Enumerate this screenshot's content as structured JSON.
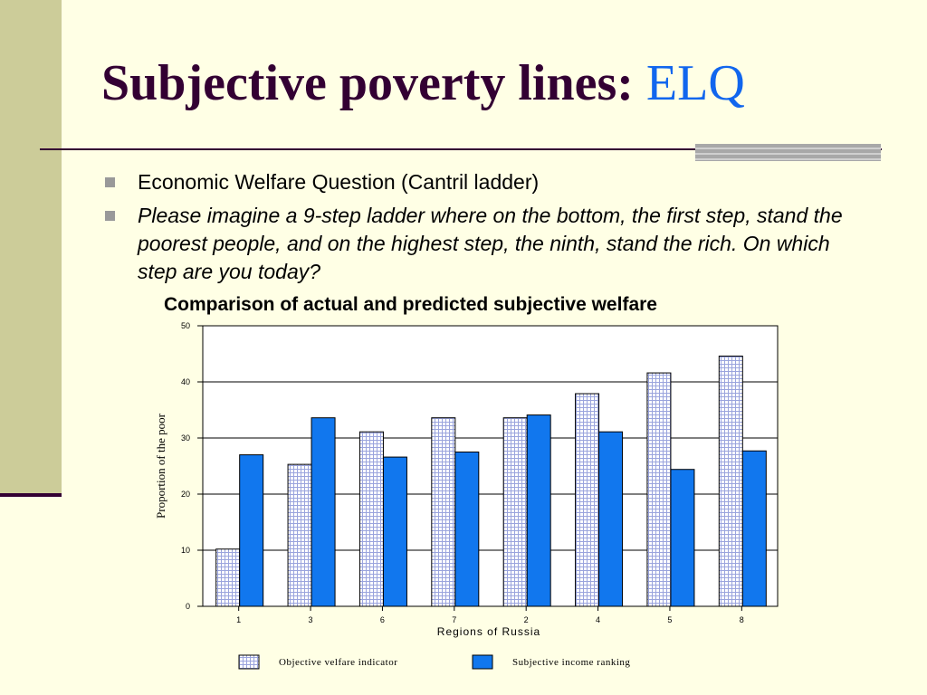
{
  "slide": {
    "title_main": "Subjective poverty lines:",
    "title_accent": "ELQ",
    "bullets": [
      "Economic Welfare Question (Cantril ladder)",
      "Please imagine a 9-step ladder where on the bottom, the first step, stand the poorest people, and on the highest step, the ninth, stand the rich. On which step are you today?"
    ]
  },
  "chart_data": {
    "type": "bar",
    "title": "Comparison of actual and predicted subjective welfare",
    "xlabel": "Regions of Russia",
    "ylabel": "Proportion of the poor",
    "categories": [
      "1",
      "3",
      "6",
      "7",
      "2",
      "4",
      "5",
      "8"
    ],
    "ylim": [
      0,
      50
    ],
    "yticks": [
      0,
      10,
      20,
      30,
      40,
      50
    ],
    "grid": true,
    "legend_position": "bottom",
    "series": [
      {
        "name": "Objective velfare indicator",
        "values": [
          10.2,
          25.3,
          31.1,
          33.6,
          33.6,
          37.9,
          41.6,
          44.6
        ],
        "color": "#D8DCF4",
        "pattern": "grid"
      },
      {
        "name": "Subjective income ranking",
        "values": [
          27.0,
          33.6,
          26.6,
          27.5,
          34.1,
          31.1,
          24.4,
          27.7
        ],
        "color": "#1177EE",
        "pattern": "solid"
      }
    ]
  }
}
